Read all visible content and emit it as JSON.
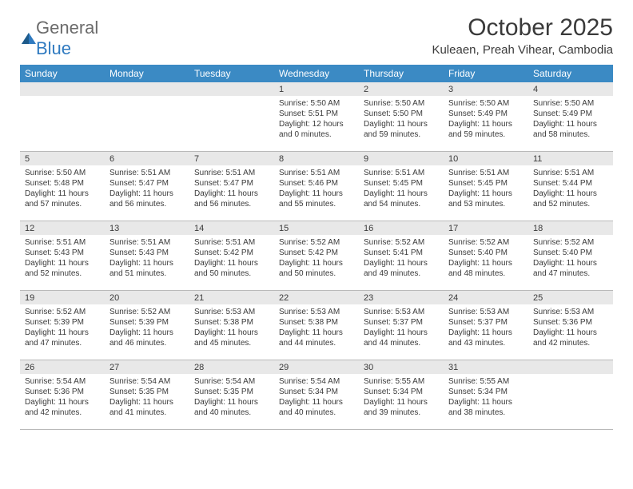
{
  "logo": {
    "part1": "General",
    "part2": "Blue"
  },
  "title": "October 2025",
  "location": "Kuleaen, Preah Vihear, Cambodia",
  "colors": {
    "header_bg": "#3b8ac4",
    "daynum_bg": "#e8e8e8",
    "text": "#3a3a3a",
    "border": "#b9b9b9",
    "logo_gray": "#6b6b6b",
    "logo_blue": "#2f7ac0"
  },
  "daysOfWeek": [
    "Sunday",
    "Monday",
    "Tuesday",
    "Wednesday",
    "Thursday",
    "Friday",
    "Saturday"
  ],
  "weeks": [
    [
      {
        "n": "",
        "sunrise": "",
        "sunset": "",
        "daylight": ""
      },
      {
        "n": "",
        "sunrise": "",
        "sunset": "",
        "daylight": ""
      },
      {
        "n": "",
        "sunrise": "",
        "sunset": "",
        "daylight": ""
      },
      {
        "n": "1",
        "sunrise": "Sunrise: 5:50 AM",
        "sunset": "Sunset: 5:51 PM",
        "daylight": "Daylight: 12 hours and 0 minutes."
      },
      {
        "n": "2",
        "sunrise": "Sunrise: 5:50 AM",
        "sunset": "Sunset: 5:50 PM",
        "daylight": "Daylight: 11 hours and 59 minutes."
      },
      {
        "n": "3",
        "sunrise": "Sunrise: 5:50 AM",
        "sunset": "Sunset: 5:49 PM",
        "daylight": "Daylight: 11 hours and 59 minutes."
      },
      {
        "n": "4",
        "sunrise": "Sunrise: 5:50 AM",
        "sunset": "Sunset: 5:49 PM",
        "daylight": "Daylight: 11 hours and 58 minutes."
      }
    ],
    [
      {
        "n": "5",
        "sunrise": "Sunrise: 5:50 AM",
        "sunset": "Sunset: 5:48 PM",
        "daylight": "Daylight: 11 hours and 57 minutes."
      },
      {
        "n": "6",
        "sunrise": "Sunrise: 5:51 AM",
        "sunset": "Sunset: 5:47 PM",
        "daylight": "Daylight: 11 hours and 56 minutes."
      },
      {
        "n": "7",
        "sunrise": "Sunrise: 5:51 AM",
        "sunset": "Sunset: 5:47 PM",
        "daylight": "Daylight: 11 hours and 56 minutes."
      },
      {
        "n": "8",
        "sunrise": "Sunrise: 5:51 AM",
        "sunset": "Sunset: 5:46 PM",
        "daylight": "Daylight: 11 hours and 55 minutes."
      },
      {
        "n": "9",
        "sunrise": "Sunrise: 5:51 AM",
        "sunset": "Sunset: 5:45 PM",
        "daylight": "Daylight: 11 hours and 54 minutes."
      },
      {
        "n": "10",
        "sunrise": "Sunrise: 5:51 AM",
        "sunset": "Sunset: 5:45 PM",
        "daylight": "Daylight: 11 hours and 53 minutes."
      },
      {
        "n": "11",
        "sunrise": "Sunrise: 5:51 AM",
        "sunset": "Sunset: 5:44 PM",
        "daylight": "Daylight: 11 hours and 52 minutes."
      }
    ],
    [
      {
        "n": "12",
        "sunrise": "Sunrise: 5:51 AM",
        "sunset": "Sunset: 5:43 PM",
        "daylight": "Daylight: 11 hours and 52 minutes."
      },
      {
        "n": "13",
        "sunrise": "Sunrise: 5:51 AM",
        "sunset": "Sunset: 5:43 PM",
        "daylight": "Daylight: 11 hours and 51 minutes."
      },
      {
        "n": "14",
        "sunrise": "Sunrise: 5:51 AM",
        "sunset": "Sunset: 5:42 PM",
        "daylight": "Daylight: 11 hours and 50 minutes."
      },
      {
        "n": "15",
        "sunrise": "Sunrise: 5:52 AM",
        "sunset": "Sunset: 5:42 PM",
        "daylight": "Daylight: 11 hours and 50 minutes."
      },
      {
        "n": "16",
        "sunrise": "Sunrise: 5:52 AM",
        "sunset": "Sunset: 5:41 PM",
        "daylight": "Daylight: 11 hours and 49 minutes."
      },
      {
        "n": "17",
        "sunrise": "Sunrise: 5:52 AM",
        "sunset": "Sunset: 5:40 PM",
        "daylight": "Daylight: 11 hours and 48 minutes."
      },
      {
        "n": "18",
        "sunrise": "Sunrise: 5:52 AM",
        "sunset": "Sunset: 5:40 PM",
        "daylight": "Daylight: 11 hours and 47 minutes."
      }
    ],
    [
      {
        "n": "19",
        "sunrise": "Sunrise: 5:52 AM",
        "sunset": "Sunset: 5:39 PM",
        "daylight": "Daylight: 11 hours and 47 minutes."
      },
      {
        "n": "20",
        "sunrise": "Sunrise: 5:52 AM",
        "sunset": "Sunset: 5:39 PM",
        "daylight": "Daylight: 11 hours and 46 minutes."
      },
      {
        "n": "21",
        "sunrise": "Sunrise: 5:53 AM",
        "sunset": "Sunset: 5:38 PM",
        "daylight": "Daylight: 11 hours and 45 minutes."
      },
      {
        "n": "22",
        "sunrise": "Sunrise: 5:53 AM",
        "sunset": "Sunset: 5:38 PM",
        "daylight": "Daylight: 11 hours and 44 minutes."
      },
      {
        "n": "23",
        "sunrise": "Sunrise: 5:53 AM",
        "sunset": "Sunset: 5:37 PM",
        "daylight": "Daylight: 11 hours and 44 minutes."
      },
      {
        "n": "24",
        "sunrise": "Sunrise: 5:53 AM",
        "sunset": "Sunset: 5:37 PM",
        "daylight": "Daylight: 11 hours and 43 minutes."
      },
      {
        "n": "25",
        "sunrise": "Sunrise: 5:53 AM",
        "sunset": "Sunset: 5:36 PM",
        "daylight": "Daylight: 11 hours and 42 minutes."
      }
    ],
    [
      {
        "n": "26",
        "sunrise": "Sunrise: 5:54 AM",
        "sunset": "Sunset: 5:36 PM",
        "daylight": "Daylight: 11 hours and 42 minutes."
      },
      {
        "n": "27",
        "sunrise": "Sunrise: 5:54 AM",
        "sunset": "Sunset: 5:35 PM",
        "daylight": "Daylight: 11 hours and 41 minutes."
      },
      {
        "n": "28",
        "sunrise": "Sunrise: 5:54 AM",
        "sunset": "Sunset: 5:35 PM",
        "daylight": "Daylight: 11 hours and 40 minutes."
      },
      {
        "n": "29",
        "sunrise": "Sunrise: 5:54 AM",
        "sunset": "Sunset: 5:34 PM",
        "daylight": "Daylight: 11 hours and 40 minutes."
      },
      {
        "n": "30",
        "sunrise": "Sunrise: 5:55 AM",
        "sunset": "Sunset: 5:34 PM",
        "daylight": "Daylight: 11 hours and 39 minutes."
      },
      {
        "n": "31",
        "sunrise": "Sunrise: 5:55 AM",
        "sunset": "Sunset: 5:34 PM",
        "daylight": "Daylight: 11 hours and 38 minutes."
      },
      {
        "n": "",
        "sunrise": "",
        "sunset": "",
        "daylight": ""
      }
    ]
  ]
}
